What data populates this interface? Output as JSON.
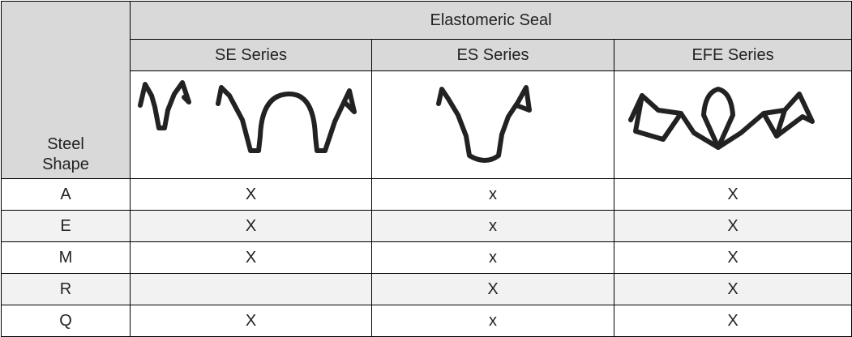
{
  "table": {
    "corner": "Steel Shape",
    "group_header": "Elastomeric Seal",
    "columns": [
      "SE Series",
      "ES Series",
      "EFE Series"
    ],
    "rows": [
      [
        "A",
        "X",
        "x",
        "X"
      ],
      [
        "E",
        "X",
        "x",
        "X"
      ],
      [
        "M",
        "X",
        "x",
        "X"
      ],
      [
        "R",
        null,
        "X",
        "X"
      ],
      [
        "Q",
        "X",
        "x",
        "X"
      ]
    ]
  }
}
